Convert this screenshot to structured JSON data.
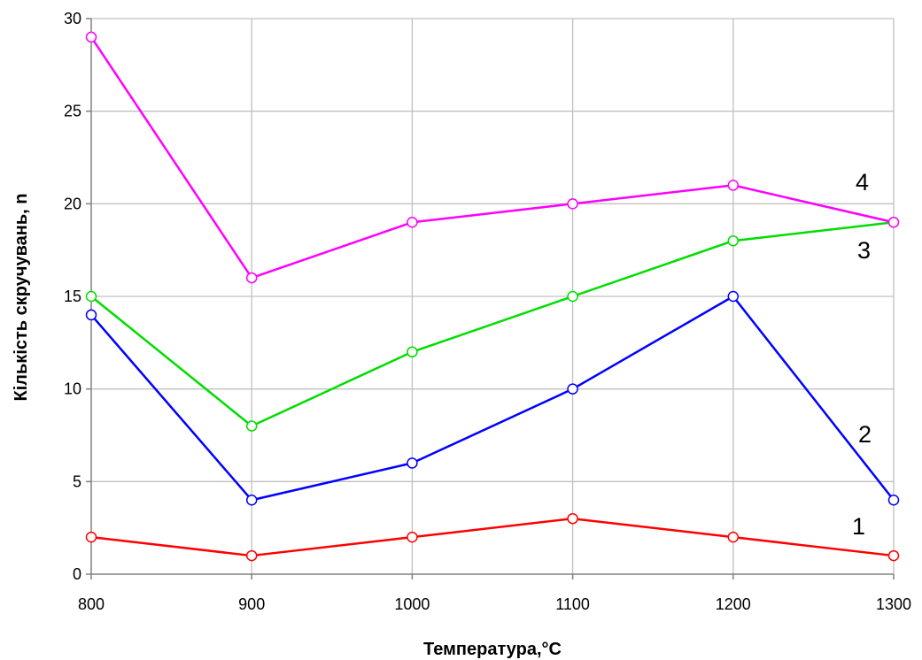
{
  "chart_data": {
    "type": "line",
    "xlabel": "Температура,°С",
    "ylabel": "Кількість скручувань, n",
    "x": [
      800,
      900,
      1000,
      1100,
      1200,
      1300
    ],
    "xticks": [
      "800",
      "900",
      "1000",
      "1100",
      "1200",
      "1300"
    ],
    "xlim": [
      800,
      1300
    ],
    "yticks": [
      "0",
      "5",
      "10",
      "15",
      "20",
      "25",
      "30"
    ],
    "ylim": [
      0,
      30
    ],
    "grid": true,
    "series": [
      {
        "name": "1",
        "color": "#ff0000",
        "values": [
          2,
          1,
          2,
          3,
          2,
          1
        ]
      },
      {
        "name": "2",
        "color": "#0000ff",
        "values": [
          14,
          4,
          6,
          10,
          15,
          4
        ]
      },
      {
        "name": "3",
        "color": "#00dd00",
        "values": [
          15,
          8,
          12,
          15,
          18,
          19
        ]
      },
      {
        "name": "4",
        "color": "#ff00ff",
        "values": [
          29,
          16,
          19,
          20,
          21,
          19
        ]
      }
    ]
  }
}
